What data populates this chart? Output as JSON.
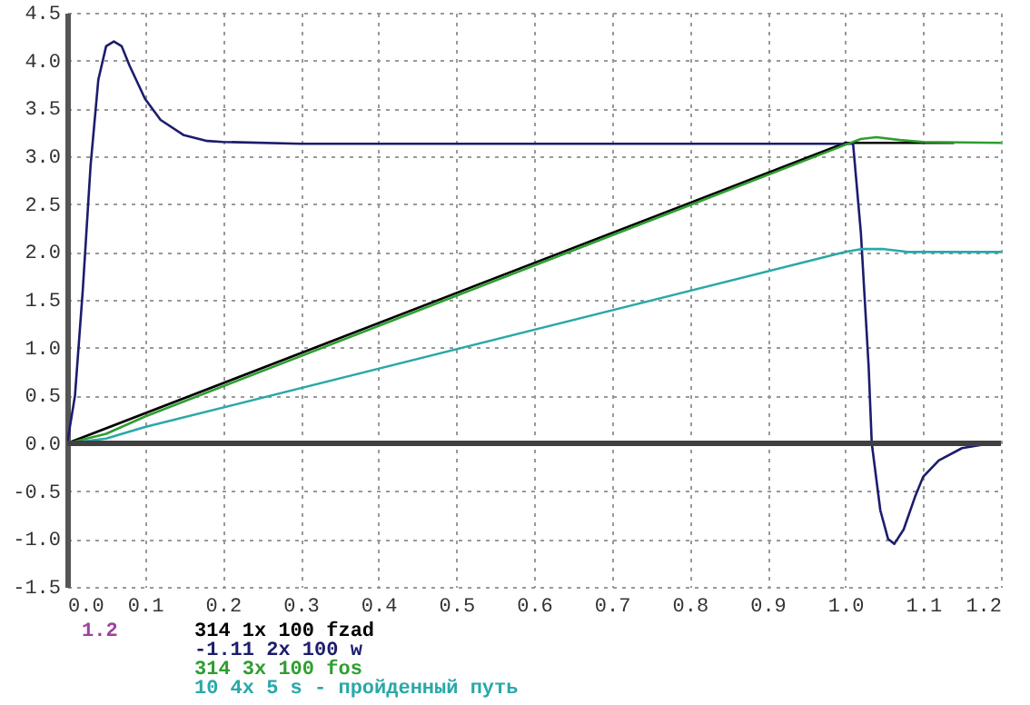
{
  "chart_data": {
    "type": "line",
    "xlim": [
      0,
      1.2
    ],
    "xticks": [
      {
        "value": 0,
        "label": "0.0"
      },
      0.1,
      0.2,
      0.3,
      0.4,
      0.5,
      0.6,
      0.7,
      0.8,
      0.9,
      {
        "value": 1,
        "label": "1.0"
      },
      1.1,
      1.2
    ],
    "ylim": [
      -1.5,
      4.5
    ],
    "yticks": [
      -1.5,
      {
        "value": -1,
        "label": "-1.0"
      },
      -0.5,
      {
        "value": 0,
        "label": "0.0"
      },
      0.5,
      {
        "value": 1,
        "label": "1.0"
      },
      1.5,
      {
        "value": 2,
        "label": "2.0"
      },
      2.5,
      {
        "value": 3,
        "label": "3.0"
      },
      3.5,
      {
        "value": 4,
        "label": "4.0"
      },
      4.5
    ],
    "grid": true,
    "legend": "bottom",
    "annotations": [
      "1.2"
    ],
    "ref_lines": [
      {
        "axis": "y",
        "value": 0,
        "color": "#404040"
      }
    ],
    "series": [
      {
        "name": "314 1x 100 fzad",
        "color": "#000000",
        "x": [
          0,
          1.0,
          1.14
        ],
        "values": [
          0,
          3.14,
          3.14
        ]
      },
      {
        "name": "-1.11 2x 100 w",
        "color": "#1c1c6e",
        "x": [
          0,
          0.01,
          0.02,
          0.03,
          0.04,
          0.05,
          0.06,
          0.07,
          0.08,
          0.1,
          0.12,
          0.15,
          0.18,
          0.2,
          0.3,
          1.01,
          1.02,
          1.03,
          1.034,
          1.045,
          1.055,
          1.063,
          1.075,
          1.09,
          1.1,
          1.12,
          1.15,
          1.18,
          1.2
        ],
        "values": [
          0,
          0.5,
          1.6,
          2.9,
          3.8,
          4.15,
          4.2,
          4.15,
          3.95,
          3.6,
          3.38,
          3.22,
          3.16,
          3.15,
          3.13,
          3.13,
          2.2,
          0.8,
          0,
          -0.7,
          -1.0,
          -1.05,
          -0.9,
          -0.55,
          -0.35,
          -0.18,
          -0.05,
          -0.01,
          0
        ]
      },
      {
        "name": "314 3x 100 fos",
        "color": "#2e9e2e",
        "x": [
          0,
          0.05,
          0.1,
          1.0,
          1.02,
          1.04,
          1.07,
          1.1,
          1.2
        ],
        "values": [
          0,
          0.1,
          0.28,
          3.12,
          3.18,
          3.2,
          3.17,
          3.15,
          3.14
        ]
      },
      {
        "name": "10 4x 5 s - пройденный путь",
        "color": "#2aa8a8",
        "x": [
          0,
          0.05,
          0.1,
          1.0,
          1.02,
          1.05,
          1.08,
          1.2
        ],
        "values": [
          0,
          0.05,
          0.17,
          2.0,
          2.03,
          2.03,
          2.0,
          2.0
        ]
      }
    ]
  }
}
